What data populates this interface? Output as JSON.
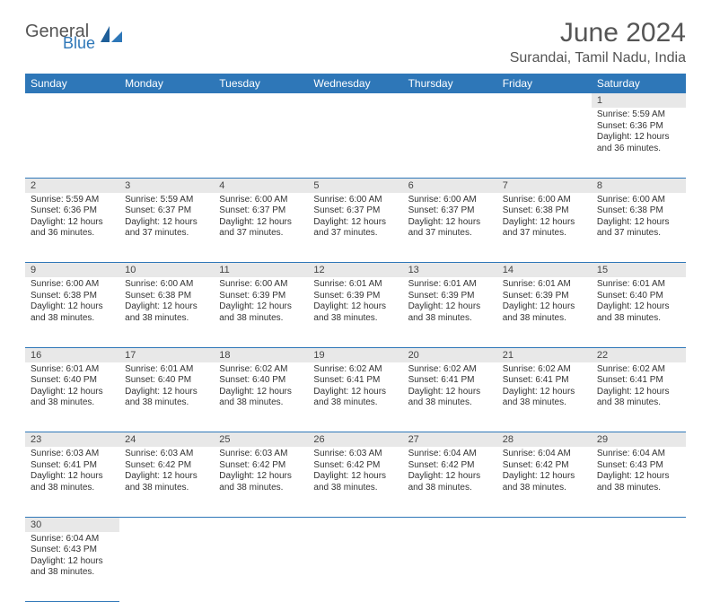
{
  "logo": {
    "text1": "General",
    "text2": "Blue"
  },
  "title": "June 2024",
  "location": "Surandai, Tamil Nadu, India",
  "colors": {
    "header_bg": "#2e77b8",
    "header_fg": "#ffffff",
    "daynum_bg": "#e8e8e8",
    "row_divider": "#2e77b8",
    "text": "#333333",
    "title_color": "#555555"
  },
  "dayNames": [
    "Sunday",
    "Monday",
    "Tuesday",
    "Wednesday",
    "Thursday",
    "Friday",
    "Saturday"
  ],
  "weeks": [
    [
      null,
      null,
      null,
      null,
      null,
      null,
      {
        "n": "1",
        "sr": "Sunrise: 5:59 AM",
        "ss": "Sunset: 6:36 PM",
        "d1": "Daylight: 12 hours",
        "d2": "and 36 minutes."
      }
    ],
    [
      {
        "n": "2",
        "sr": "Sunrise: 5:59 AM",
        "ss": "Sunset: 6:36 PM",
        "d1": "Daylight: 12 hours",
        "d2": "and 36 minutes."
      },
      {
        "n": "3",
        "sr": "Sunrise: 5:59 AM",
        "ss": "Sunset: 6:37 PM",
        "d1": "Daylight: 12 hours",
        "d2": "and 37 minutes."
      },
      {
        "n": "4",
        "sr": "Sunrise: 6:00 AM",
        "ss": "Sunset: 6:37 PM",
        "d1": "Daylight: 12 hours",
        "d2": "and 37 minutes."
      },
      {
        "n": "5",
        "sr": "Sunrise: 6:00 AM",
        "ss": "Sunset: 6:37 PM",
        "d1": "Daylight: 12 hours",
        "d2": "and 37 minutes."
      },
      {
        "n": "6",
        "sr": "Sunrise: 6:00 AM",
        "ss": "Sunset: 6:37 PM",
        "d1": "Daylight: 12 hours",
        "d2": "and 37 minutes."
      },
      {
        "n": "7",
        "sr": "Sunrise: 6:00 AM",
        "ss": "Sunset: 6:38 PM",
        "d1": "Daylight: 12 hours",
        "d2": "and 37 minutes."
      },
      {
        "n": "8",
        "sr": "Sunrise: 6:00 AM",
        "ss": "Sunset: 6:38 PM",
        "d1": "Daylight: 12 hours",
        "d2": "and 37 minutes."
      }
    ],
    [
      {
        "n": "9",
        "sr": "Sunrise: 6:00 AM",
        "ss": "Sunset: 6:38 PM",
        "d1": "Daylight: 12 hours",
        "d2": "and 38 minutes."
      },
      {
        "n": "10",
        "sr": "Sunrise: 6:00 AM",
        "ss": "Sunset: 6:38 PM",
        "d1": "Daylight: 12 hours",
        "d2": "and 38 minutes."
      },
      {
        "n": "11",
        "sr": "Sunrise: 6:00 AM",
        "ss": "Sunset: 6:39 PM",
        "d1": "Daylight: 12 hours",
        "d2": "and 38 minutes."
      },
      {
        "n": "12",
        "sr": "Sunrise: 6:01 AM",
        "ss": "Sunset: 6:39 PM",
        "d1": "Daylight: 12 hours",
        "d2": "and 38 minutes."
      },
      {
        "n": "13",
        "sr": "Sunrise: 6:01 AM",
        "ss": "Sunset: 6:39 PM",
        "d1": "Daylight: 12 hours",
        "d2": "and 38 minutes."
      },
      {
        "n": "14",
        "sr": "Sunrise: 6:01 AM",
        "ss": "Sunset: 6:39 PM",
        "d1": "Daylight: 12 hours",
        "d2": "and 38 minutes."
      },
      {
        "n": "15",
        "sr": "Sunrise: 6:01 AM",
        "ss": "Sunset: 6:40 PM",
        "d1": "Daylight: 12 hours",
        "d2": "and 38 minutes."
      }
    ],
    [
      {
        "n": "16",
        "sr": "Sunrise: 6:01 AM",
        "ss": "Sunset: 6:40 PM",
        "d1": "Daylight: 12 hours",
        "d2": "and 38 minutes."
      },
      {
        "n": "17",
        "sr": "Sunrise: 6:01 AM",
        "ss": "Sunset: 6:40 PM",
        "d1": "Daylight: 12 hours",
        "d2": "and 38 minutes."
      },
      {
        "n": "18",
        "sr": "Sunrise: 6:02 AM",
        "ss": "Sunset: 6:40 PM",
        "d1": "Daylight: 12 hours",
        "d2": "and 38 minutes."
      },
      {
        "n": "19",
        "sr": "Sunrise: 6:02 AM",
        "ss": "Sunset: 6:41 PM",
        "d1": "Daylight: 12 hours",
        "d2": "and 38 minutes."
      },
      {
        "n": "20",
        "sr": "Sunrise: 6:02 AM",
        "ss": "Sunset: 6:41 PM",
        "d1": "Daylight: 12 hours",
        "d2": "and 38 minutes."
      },
      {
        "n": "21",
        "sr": "Sunrise: 6:02 AM",
        "ss": "Sunset: 6:41 PM",
        "d1": "Daylight: 12 hours",
        "d2": "and 38 minutes."
      },
      {
        "n": "22",
        "sr": "Sunrise: 6:02 AM",
        "ss": "Sunset: 6:41 PM",
        "d1": "Daylight: 12 hours",
        "d2": "and 38 minutes."
      }
    ],
    [
      {
        "n": "23",
        "sr": "Sunrise: 6:03 AM",
        "ss": "Sunset: 6:41 PM",
        "d1": "Daylight: 12 hours",
        "d2": "and 38 minutes."
      },
      {
        "n": "24",
        "sr": "Sunrise: 6:03 AM",
        "ss": "Sunset: 6:42 PM",
        "d1": "Daylight: 12 hours",
        "d2": "and 38 minutes."
      },
      {
        "n": "25",
        "sr": "Sunrise: 6:03 AM",
        "ss": "Sunset: 6:42 PM",
        "d1": "Daylight: 12 hours",
        "d2": "and 38 minutes."
      },
      {
        "n": "26",
        "sr": "Sunrise: 6:03 AM",
        "ss": "Sunset: 6:42 PM",
        "d1": "Daylight: 12 hours",
        "d2": "and 38 minutes."
      },
      {
        "n": "27",
        "sr": "Sunrise: 6:04 AM",
        "ss": "Sunset: 6:42 PM",
        "d1": "Daylight: 12 hours",
        "d2": "and 38 minutes."
      },
      {
        "n": "28",
        "sr": "Sunrise: 6:04 AM",
        "ss": "Sunset: 6:42 PM",
        "d1": "Daylight: 12 hours",
        "d2": "and 38 minutes."
      },
      {
        "n": "29",
        "sr": "Sunrise: 6:04 AM",
        "ss": "Sunset: 6:43 PM",
        "d1": "Daylight: 12 hours",
        "d2": "and 38 minutes."
      }
    ],
    [
      {
        "n": "30",
        "sr": "Sunrise: 6:04 AM",
        "ss": "Sunset: 6:43 PM",
        "d1": "Daylight: 12 hours",
        "d2": "and 38 minutes."
      },
      null,
      null,
      null,
      null,
      null,
      null
    ]
  ]
}
